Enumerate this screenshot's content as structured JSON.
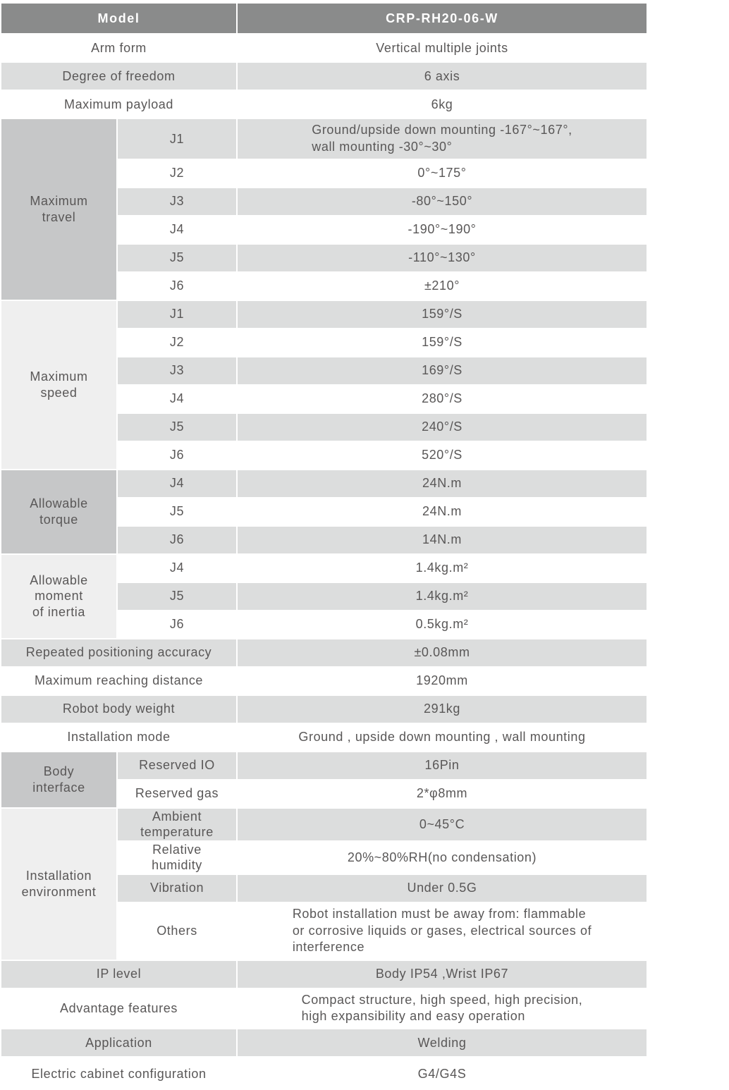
{
  "colors": {
    "header_bg": "#8a8b8b",
    "header_text": "#ffffff",
    "row_gray": "#dcdddd",
    "row_white": "#ffffff",
    "group_dark": "#c6c7c8",
    "group_light": "#efefef",
    "text": "#595757"
  },
  "header": {
    "label": "Model",
    "value": "CRP-RH20-06-W"
  },
  "rows_top": [
    {
      "label": "Arm form",
      "value": "Vertical multiple joints"
    },
    {
      "label": "Degree of freedom",
      "value": "6 axis"
    },
    {
      "label": "Maximum payload",
      "value": "6kg"
    }
  ],
  "maximum_travel": {
    "label": "Maximum\ntravel",
    "rows": [
      {
        "sub": "J1",
        "value": "Ground/upside down mounting -167°~167°,\nwall mounting -30°~30°"
      },
      {
        "sub": "J2",
        "value": "0°~175°"
      },
      {
        "sub": "J3",
        "value": "-80°~150°"
      },
      {
        "sub": "J4",
        "value": "-190°~190°"
      },
      {
        "sub": "J5",
        "value": "-110°~130°"
      },
      {
        "sub": "J6",
        "value": "±210°"
      }
    ]
  },
  "maximum_speed": {
    "label": "Maximum\nspeed",
    "rows": [
      {
        "sub": "J1",
        "value": "159°/S"
      },
      {
        "sub": "J2",
        "value": "159°/S"
      },
      {
        "sub": "J3",
        "value": "169°/S"
      },
      {
        "sub": "J4",
        "value": "280°/S"
      },
      {
        "sub": "J5",
        "value": "240°/S"
      },
      {
        "sub": "J6",
        "value": "520°/S"
      }
    ]
  },
  "allowable_torque": {
    "label": "Allowable\ntorque",
    "rows": [
      {
        "sub": "J4",
        "value": "24N.m"
      },
      {
        "sub": "J5",
        "value": "24N.m"
      },
      {
        "sub": "J6",
        "value": "14N.m"
      }
    ]
  },
  "allowable_inertia": {
    "label": "Allowable\nmoment\nof inertia",
    "rows": [
      {
        "sub": "J4",
        "value": "1.4kg.m²"
      },
      {
        "sub": "J5",
        "value": "1.4kg.m²"
      },
      {
        "sub": "J6",
        "value": "0.5kg.m²"
      }
    ]
  },
  "rows_mid": [
    {
      "label": "Repeated positioning accuracy",
      "value": "±0.08mm"
    },
    {
      "label": "Maximum reaching distance",
      "value": "1920mm"
    },
    {
      "label": "Robot body weight",
      "value": "291kg"
    },
    {
      "label": "Installation mode",
      "value": "Ground ,  upside down mounting ,  wall mounting"
    }
  ],
  "body_interface": {
    "label": "Body\ninterface",
    "rows": [
      {
        "sub": "Reserved IO",
        "value": "16Pin"
      },
      {
        "sub": "Reserved gas",
        "value": "2*φ8mm"
      }
    ]
  },
  "installation_environment": {
    "label": "Installation\nenvironment",
    "rows": [
      {
        "sub": "Ambient\ntemperature",
        "value": "0~45°C"
      },
      {
        "sub": "Relative\nhumidity",
        "value": "20%~80%RH(no condensation)"
      },
      {
        "sub": "Vibration",
        "value": "Under 0.5G"
      },
      {
        "sub": "Others",
        "value": "Robot installation must be away from: flammable\nor corrosive liquids or gases, electrical sources of\ninterference"
      }
    ]
  },
  "rows_bottom": [
    {
      "label": "IP level",
      "value": "Body IP54 ,Wrist IP67"
    },
    {
      "label": "Advantage features",
      "value": "Compact structure, high speed, high precision,\nhigh expansibility and easy operation"
    },
    {
      "label": "Application",
      "value": "Welding"
    },
    {
      "label": "Electric cabinet configuration",
      "value": "G4/G4S"
    }
  ]
}
